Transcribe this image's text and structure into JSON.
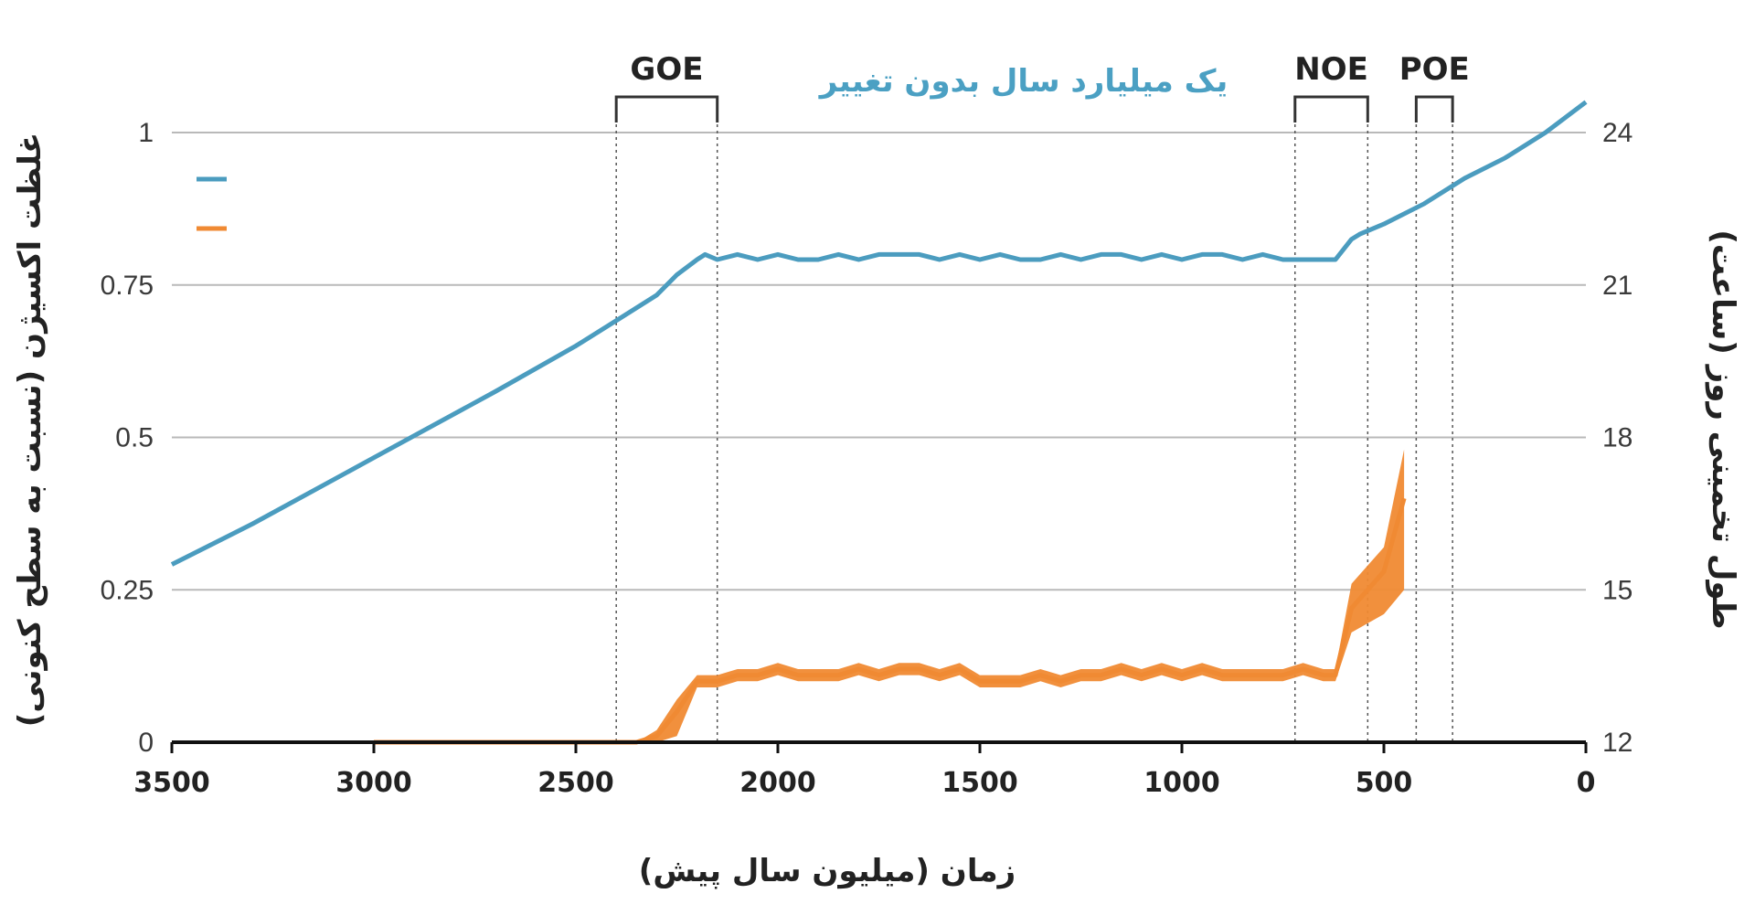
{
  "chart_data": {
    "type": "line",
    "x_label": "زمان (میلیون سال پیش)",
    "y_left_label": "غلظت اکسیژن (نسبت به سطح کنونی)",
    "y_right_label": "طول تخمینی روز (ساعت)",
    "x_range": [
      3500,
      0
    ],
    "x_ticks": [
      "3500",
      "3000",
      "2500",
      "2000",
      "1500",
      "1000",
      "500",
      "0"
    ],
    "y_left_range": [
      0,
      1
    ],
    "y_left_ticks": [
      "0",
      "0.25",
      "0.5",
      "0.75",
      "1"
    ],
    "y_right_range": [
      12,
      24
    ],
    "y_right_ticks": [
      "12",
      "15",
      "18",
      "21",
      "24"
    ],
    "grid": true,
    "annotation": "یک میلیارد سال بدون تغییر",
    "eras": [
      {
        "name": "GOE",
        "start": 2400,
        "end": 2150
      },
      {
        "name": "NOE",
        "start": 720,
        "end": 540
      },
      {
        "name": "POE",
        "start": 420,
        "end": 330
      }
    ],
    "series": [
      {
        "color": "#4b9cbf",
        "legend_marker": true,
        "axis": "right",
        "x": [
          3500,
          3300,
          3000,
          2700,
          2500,
          2400,
          2300,
          2250,
          2200,
          2180,
          2150,
          2100,
          2050,
          2000,
          1950,
          1900,
          1850,
          1800,
          1750,
          1700,
          1650,
          1600,
          1550,
          1500,
          1450,
          1400,
          1350,
          1300,
          1250,
          1200,
          1150,
          1100,
          1050,
          1000,
          950,
          900,
          850,
          800,
          750,
          700,
          650,
          620,
          580,
          560,
          500,
          400,
          300,
          200,
          100,
          0
        ],
        "y": [
          15.5,
          16.3,
          17.6,
          18.9,
          19.8,
          20.3,
          20.8,
          21.2,
          21.5,
          21.6,
          21.5,
          21.6,
          21.5,
          21.6,
          21.5,
          21.5,
          21.6,
          21.5,
          21.6,
          21.6,
          21.6,
          21.5,
          21.6,
          21.5,
          21.6,
          21.5,
          21.5,
          21.6,
          21.5,
          21.6,
          21.6,
          21.5,
          21.6,
          21.5,
          21.6,
          21.6,
          21.5,
          21.6,
          21.5,
          21.5,
          21.5,
          21.5,
          21.9,
          22.0,
          22.2,
          22.6,
          23.1,
          23.5,
          24.0,
          24.6
        ]
      },
      {
        "color": "#f08a33",
        "legend_marker": true,
        "axis": "left",
        "x": [
          3000,
          2500,
          2350,
          2300,
          2250,
          2200,
          2180,
          2150,
          2100,
          2050,
          2000,
          1950,
          1900,
          1850,
          1800,
          1750,
          1700,
          1650,
          1600,
          1550,
          1500,
          1450,
          1400,
          1350,
          1300,
          1250,
          1200,
          1150,
          1100,
          1050,
          1000,
          950,
          900,
          850,
          800,
          750,
          700,
          650,
          620,
          580,
          500,
          450
        ],
        "y": [
          0,
          0,
          0,
          0.01,
          0.05,
          0.1,
          0.1,
          0.1,
          0.11,
          0.11,
          0.12,
          0.11,
          0.11,
          0.11,
          0.12,
          0.11,
          0.12,
          0.12,
          0.11,
          0.12,
          0.1,
          0.1,
          0.1,
          0.11,
          0.1,
          0.11,
          0.11,
          0.12,
          0.11,
          0.12,
          0.11,
          0.12,
          0.11,
          0.11,
          0.11,
          0.11,
          0.12,
          0.11,
          0.11,
          0.22,
          0.28,
          0.4
        ],
        "y_lower": [
          0,
          0,
          0,
          0,
          0.01,
          0.09,
          0.09,
          0.09,
          0.1,
          0.1,
          0.11,
          0.1,
          0.1,
          0.1,
          0.11,
          0.1,
          0.11,
          0.11,
          0.1,
          0.11,
          0.09,
          0.09,
          0.09,
          0.1,
          0.09,
          0.1,
          0.1,
          0.11,
          0.1,
          0.11,
          0.1,
          0.11,
          0.1,
          0.1,
          0.1,
          0.1,
          0.11,
          0.1,
          0.1,
          0.18,
          0.21,
          0.25
        ],
        "y_upper": [
          0,
          0,
          0,
          0.02,
          0.07,
          0.11,
          0.11,
          0.11,
          0.12,
          0.12,
          0.13,
          0.12,
          0.12,
          0.12,
          0.13,
          0.12,
          0.13,
          0.13,
          0.12,
          0.13,
          0.11,
          0.11,
          0.11,
          0.12,
          0.11,
          0.12,
          0.12,
          0.13,
          0.12,
          0.13,
          0.12,
          0.13,
          0.12,
          0.12,
          0.12,
          0.12,
          0.13,
          0.12,
          0.12,
          0.26,
          0.32,
          0.48
        ]
      }
    ]
  }
}
